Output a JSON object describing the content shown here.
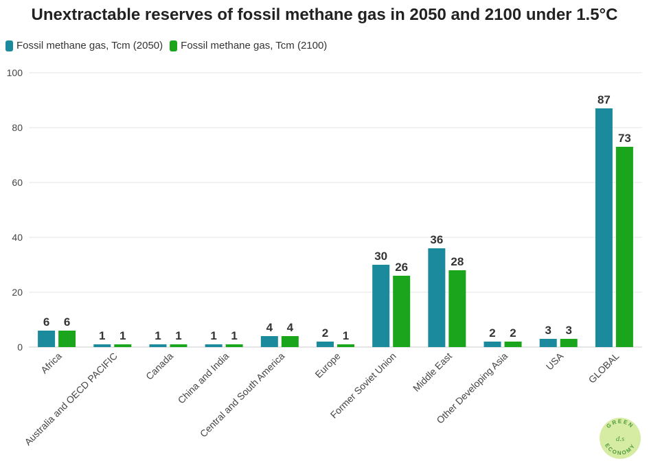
{
  "chart_data": {
    "type": "bar",
    "title": "Unextractable reserves of fossil methane gas in 2050 and 2100 under 1.5°C",
    "xlabel": "",
    "ylabel": "",
    "ylim": [
      0,
      100
    ],
    "yticks": [
      0,
      20,
      40,
      60,
      80,
      100
    ],
    "grid": true,
    "legend_position": "top-left",
    "categories": [
      "Africa",
      "Australia and OECD PACIFIC",
      "Canada",
      "China and India",
      "Central and South America",
      "Europe",
      "Former Soviet Union",
      "Middle East",
      "Other Developing Asia",
      "USA",
      "GLOBAL"
    ],
    "series": [
      {
        "name": "Fossil methane gas, Tcm (2050)",
        "color": "#1a8a9c",
        "values": [
          6,
          1,
          1,
          1,
          4,
          2,
          30,
          36,
          2,
          3,
          87
        ]
      },
      {
        "name": "Fossil methane gas, Tcm (2100)",
        "color": "#1aa51c",
        "values": [
          6,
          1,
          1,
          1,
          4,
          1,
          26,
          28,
          2,
          3,
          73
        ]
      }
    ]
  },
  "logo": {
    "top_text": "GREEN",
    "bottom_text": "ECONOMY",
    "center_text": "d.s"
  }
}
